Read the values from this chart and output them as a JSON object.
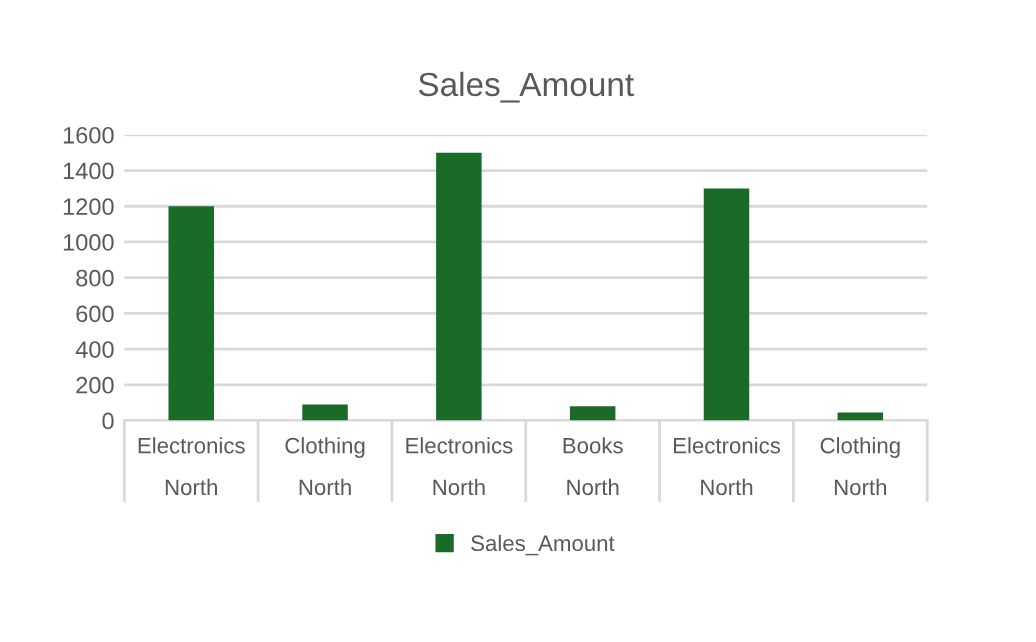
{
  "chart_data": {
    "type": "bar",
    "title": "Sales_Amount",
    "categories": [
      "Electronics\nNorth",
      "Clothing\nNorth",
      "Electronics\nNorth",
      "Books\nNorth",
      "Electronics\nNorth",
      "Clothing\nNorth"
    ],
    "series": [
      {
        "name": "Sales_Amount",
        "color": "#1b6b28",
        "values": [
          1200,
          90,
          1500,
          80,
          1300,
          45
        ]
      }
    ],
    "ylim": [
      0,
      1600
    ],
    "yticks": [
      0,
      200,
      400,
      600,
      800,
      1000,
      1200,
      1400,
      1600
    ],
    "grid": "y",
    "legend": "bottom"
  }
}
